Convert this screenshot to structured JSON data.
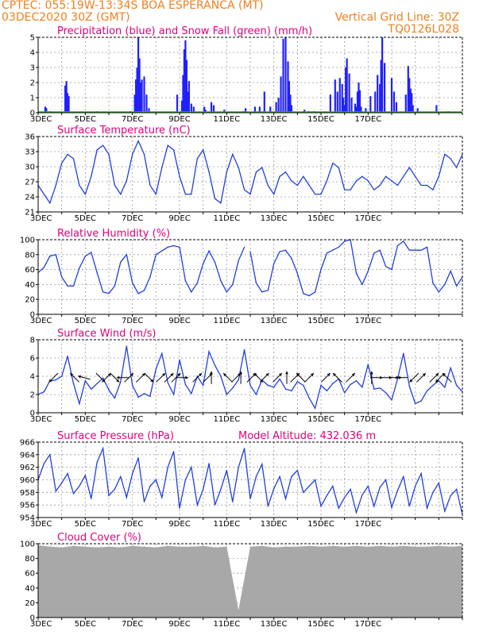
{
  "header": {
    "line1": "CPTEC:   055:19W-13:34S  BOA ESPERANCA (MT)",
    "line2": "03DEC2020 30Z (GMT)",
    "grid_note": "Vertical Grid Line: 30Z",
    "run_code": "TQ0126L028"
  },
  "colors": {
    "precip": "#2020ff",
    "snow": "#20c020",
    "line": "#2040e0",
    "cloud": "#a8a8a8",
    "title": "#e0007a",
    "header": "#f08020"
  },
  "x_labels": [
    "3DEC",
    "5DEC",
    "7DEC",
    "9DEC",
    "11DEC",
    "13DEC",
    "15DEC",
    "17DEC"
  ],
  "chart_data": [
    {
      "id": "precip",
      "type": "bar",
      "title": "Precipitation (blue) and Snow Fall (green) (mm/h)",
      "ylim": [
        0,
        5
      ],
      "yticks": [
        "0",
        "1",
        "2",
        "3",
        "4",
        "5"
      ],
      "x_days": [
        0.3,
        0.35,
        0.5,
        1.15,
        1.2,
        1.25,
        1.3,
        2.5,
        3.9,
        4.1,
        4.15,
        4.2,
        4.25,
        4.3,
        4.35,
        4.4,
        4.5,
        4.6,
        4.7,
        5.9,
        6.1,
        6.15,
        6.2,
        6.25,
        6.3,
        6.35,
        6.4,
        6.5,
        6.6,
        7.05,
        7.1,
        7.35,
        7.45,
        7.9,
        8.7,
        8.8,
        9.2,
        9.4,
        9.6,
        9.85,
        10.1,
        10.2,
        10.3,
        10.4,
        10.5,
        10.6,
        10.65,
        10.7,
        10.75,
        11.3,
        11.5,
        11.7,
        12.4,
        12.6,
        12.7,
        12.8,
        12.9,
        12.95,
        13.0,
        13.05,
        13.1,
        13.2,
        13.3,
        13.45,
        13.5,
        13.55,
        13.6,
        13.65,
        13.7,
        13.9,
        14.1,
        14.3,
        14.4,
        14.5,
        14.55,
        14.6,
        14.7,
        15.0,
        15.1,
        15.2,
        15.6,
        15.7,
        15.75,
        15.8,
        15.85,
        15.9,
        16.1,
        16.9,
        17.4
      ],
      "values": [
        0.4,
        0.3,
        0.1,
        1.8,
        2.1,
        1.3,
        1.1,
        0.1,
        0.1,
        1.2,
        2.2,
        3.0,
        5.0,
        3.6,
        2.0,
        2.2,
        2.4,
        1.2,
        0.3,
        1.2,
        0.8,
        2.5,
        4.2,
        4.8,
        3.5,
        1.4,
        2.1,
        0.6,
        0.4,
        0.4,
        0.2,
        0.7,
        0.5,
        0.2,
        0.1,
        0.3,
        0.4,
        0.4,
        1.4,
        0.4,
        0.7,
        1.0,
        2.4,
        4.9,
        5.0,
        3.4,
        2.1,
        1.2,
        0.5,
        0.2,
        0.1,
        0.1,
        1.2,
        2.2,
        1.4,
        2.3,
        1.9,
        1.0,
        0.5,
        3.0,
        3.6,
        2.6,
        1.0,
        0.6,
        0.4,
        1.4,
        2.0,
        1.5,
        0.4,
        0.3,
        1.1,
        1.4,
        2.5,
        1.9,
        3.5,
        5.0,
        3.3,
        2.3,
        1.4,
        0.7,
        1.2,
        3.1,
        2.3,
        1.6,
        1.3,
        0.5,
        0.3,
        0.5,
        0.1
      ],
      "snow_values": "all 0"
    },
    {
      "id": "temp",
      "type": "line",
      "title": "Surface Temperature (nC)",
      "ylim": [
        20,
        37
      ],
      "yticks": [
        "21",
        "24",
        "27",
        "30",
        "33",
        "36"
      ],
      "x_days": [
        0,
        0.25,
        0.5,
        0.75,
        1.0,
        1.25,
        1.5,
        1.75,
        2.0,
        2.25,
        2.5,
        2.75,
        3.0,
        3.25,
        3.5,
        3.75,
        4.0,
        4.25,
        4.5,
        4.75,
        5.0,
        5.25,
        5.5,
        5.75,
        6.0,
        6.25,
        6.5,
        6.75,
        7.0,
        7.25,
        7.5,
        7.75,
        8.0,
        8.25,
        8.5,
        8.75,
        9.0,
        9.25,
        9.5,
        9.75,
        10.0,
        10.25,
        10.5,
        10.75,
        11.0,
        11.25,
        11.5,
        11.75,
        12.0,
        12.25,
        12.5,
        12.75,
        13.0,
        13.25,
        13.5,
        13.75,
        14.0,
        14.25,
        14.5,
        14.75,
        15.0,
        15.25,
        15.5,
        15.75,
        16.0,
        16.25,
        16.5,
        16.75,
        17.0,
        17.25,
        17.5,
        17.75,
        18.0
      ],
      "values": [
        26,
        24,
        22,
        26,
        31,
        33,
        32,
        26,
        24,
        28,
        34,
        35,
        33,
        26,
        24,
        27,
        33,
        36,
        33,
        26,
        24,
        30,
        35,
        34,
        28,
        24,
        24,
        32,
        34,
        29,
        23,
        22,
        29,
        33,
        30,
        25,
        24,
        29,
        30,
        26,
        24,
        28,
        29,
        27,
        26,
        28,
        26,
        24,
        24,
        27,
        31,
        30,
        25,
        25,
        27,
        28,
        27,
        25,
        26,
        28,
        27,
        26,
        28,
        30,
        28,
        26,
        26,
        25,
        28,
        33,
        32,
        30,
        33
      ],
      "gaps": []
    },
    {
      "id": "rh",
      "type": "line",
      "title": "Relative Humidity (%)",
      "ylim": [
        0,
        100
      ],
      "yticks": [
        "0",
        "20",
        "40",
        "60",
        "80",
        "100"
      ],
      "x_days": [
        0,
        0.25,
        0.5,
        0.75,
        1.0,
        1.25,
        1.5,
        1.75,
        2.0,
        2.25,
        2.5,
        2.75,
        3.0,
        3.25,
        3.5,
        3.75,
        4.0,
        4.25,
        4.5,
        4.75,
        5.0,
        5.25,
        5.5,
        5.75,
        6.0,
        6.25,
        6.5,
        6.75,
        7.0,
        7.25,
        7.5,
        7.75,
        8.0,
        8.25,
        8.5,
        8.75,
        9.0,
        9.25,
        9.5,
        9.75,
        10.0,
        10.25,
        10.5,
        10.75,
        11.0,
        11.25,
        11.5,
        11.75,
        12.0,
        12.25,
        12.5,
        12.75,
        13.0,
        13.25,
        13.5,
        13.75,
        14.0,
        14.25,
        14.5,
        14.75,
        15.0,
        15.25,
        15.5,
        15.75,
        16.0,
        16.25,
        16.5,
        16.75,
        17.0,
        17.25,
        17.5,
        17.75,
        18.0
      ],
      "values": [
        56,
        63,
        78,
        80,
        50,
        38,
        38,
        62,
        78,
        83,
        56,
        30,
        28,
        38,
        70,
        80,
        42,
        28,
        32,
        50,
        80,
        85,
        90,
        92,
        90,
        45,
        30,
        42,
        68,
        85,
        70,
        45,
        30,
        40,
        72,
        90,
        84,
        42,
        30,
        32,
        68,
        84,
        86,
        75,
        55,
        28,
        25,
        30,
        60,
        82,
        86,
        90,
        98,
        100,
        55,
        40,
        58,
        82,
        86,
        64,
        60,
        92,
        98,
        86,
        86,
        86,
        90,
        42,
        30,
        40,
        58,
        38,
        50
      ],
      "gaps": [
        8.9
      ]
    },
    {
      "id": "wind",
      "type": "line",
      "title": "Surface Wind (m/s)",
      "ylim": [
        0,
        8
      ],
      "yticks": [
        "0",
        "2",
        "4",
        "6",
        "8"
      ],
      "x_days": [
        0,
        0.25,
        0.5,
        0.75,
        1.0,
        1.25,
        1.5,
        1.75,
        2.0,
        2.25,
        2.5,
        2.75,
        3.0,
        3.25,
        3.5,
        3.75,
        4.0,
        4.25,
        4.5,
        4.75,
        5.0,
        5.25,
        5.5,
        5.75,
        6.0,
        6.25,
        6.5,
        6.75,
        7.0,
        7.25,
        7.5,
        7.75,
        8.0,
        8.25,
        8.5,
        8.75,
        9.0,
        9.25,
        9.5,
        9.75,
        10.0,
        10.25,
        10.5,
        10.75,
        11.0,
        11.25,
        11.5,
        11.75,
        12.0,
        12.25,
        12.5,
        12.75,
        13.0,
        13.25,
        13.5,
        13.75,
        14.0,
        14.25,
        14.5,
        14.75,
        15.0,
        15.25,
        15.5,
        15.75,
        16.0,
        16.25,
        16.5,
        16.75,
        17.0,
        17.25,
        17.5,
        17.75,
        18.0
      ],
      "values": [
        2,
        2.3,
        3.5,
        3.6,
        4,
        6.2,
        3.2,
        1,
        3.5,
        2.6,
        3.2,
        3.8,
        2.5,
        1.6,
        3.4,
        7.3,
        3,
        1.7,
        2.1,
        1.8,
        4.8,
        6.5,
        3.3,
        2,
        5.8,
        3.1,
        2.1,
        4,
        3,
        6.7,
        5.2,
        4,
        2,
        2.7,
        3.6,
        6.9,
        3,
        2,
        3.6,
        3,
        2.8,
        3.7,
        2.6,
        2.4,
        3.4,
        3,
        1.6,
        0.5,
        3,
        2.4,
        3.2,
        3.7,
        2.2,
        3.1,
        3.5,
        2.8,
        5.3,
        2.6,
        2.7,
        2.2,
        1.4,
        3.7,
        6.5,
        2.9,
        1,
        1.3,
        2.4,
        3,
        3.5,
        2.8,
        4.9,
        3,
        2.3
      ],
      "arrows": [
        [
          0.65,
          225
        ],
        [
          1.55,
          135
        ],
        [
          1.95,
          165
        ],
        [
          2.65,
          315
        ],
        [
          2.9,
          45
        ],
        [
          3.25,
          315
        ],
        [
          3.6,
          180
        ],
        [
          3.85,
          45
        ],
        [
          4.35,
          45
        ],
        [
          4.7,
          315
        ],
        [
          5.2,
          45
        ],
        [
          5.55,
          45
        ],
        [
          5.85,
          45
        ],
        [
          6.1,
          0
        ],
        [
          6.75,
          45
        ],
        [
          7.2,
          45
        ],
        [
          7.35,
          90
        ],
        [
          8.05,
          135
        ],
        [
          8.4,
          45
        ],
        [
          8.6,
          90
        ],
        [
          9.05,
          45
        ],
        [
          9.35,
          135
        ],
        [
          9.6,
          45
        ],
        [
          10.15,
          45
        ],
        [
          10.55,
          90
        ],
        [
          10.9,
          45
        ],
        [
          11.15,
          135
        ],
        [
          11.5,
          45
        ],
        [
          12.2,
          45
        ],
        [
          12.7,
          135
        ],
        [
          13.25,
          45
        ],
        [
          14.15,
          90
        ],
        [
          14.35,
          0
        ],
        [
          14.75,
          0
        ],
        [
          15.15,
          0
        ],
        [
          15.4,
          180
        ],
        [
          15.95,
          225
        ],
        [
          16.25,
          45
        ],
        [
          16.8,
          45
        ],
        [
          17.05,
          225
        ],
        [
          17.35,
          135
        ]
      ]
    },
    {
      "id": "pressure",
      "type": "line",
      "title": "Surface Pressure (hPa)",
      "extra_label": "Model Altitude: 432.036  m",
      "ylim": [
        954,
        966
      ],
      "yticks": [
        "954",
        "956",
        "958",
        "960",
        "962",
        "964",
        "966"
      ],
      "x_days": [
        0,
        0.25,
        0.5,
        0.75,
        1.0,
        1.25,
        1.5,
        1.75,
        2.0,
        2.25,
        2.5,
        2.75,
        3.0,
        3.25,
        3.5,
        3.75,
        4.0,
        4.25,
        4.5,
        4.75,
        5.0,
        5.25,
        5.5,
        5.75,
        6.0,
        6.25,
        6.5,
        6.75,
        7.0,
        7.25,
        7.5,
        7.75,
        8.0,
        8.25,
        8.5,
        8.75,
        9.0,
        9.25,
        9.5,
        9.75,
        10.0,
        10.25,
        10.5,
        10.75,
        11.0,
        11.25,
        11.5,
        11.75,
        12.0,
        12.25,
        12.5,
        12.75,
        13.0,
        13.25,
        13.5,
        13.75,
        14.0,
        14.25,
        14.5,
        14.75,
        15.0,
        15.25,
        15.5,
        15.75,
        16.0,
        16.25,
        16.5,
        16.75,
        17.0,
        17.25,
        17.5,
        17.75,
        18.0
      ],
      "values": [
        960,
        962.6,
        964,
        958.2,
        959.5,
        961,
        957.8,
        959,
        960.7,
        957,
        962.8,
        965,
        957.5,
        958.5,
        960.5,
        957.2,
        961,
        963.5,
        956.5,
        959,
        960,
        957.2,
        962,
        964.5,
        955.5,
        960,
        962,
        956,
        958.5,
        962.6,
        956,
        958.5,
        961.5,
        956.5,
        962,
        965,
        957,
        960.5,
        962.5,
        955.8,
        958.6,
        960.5,
        957,
        960.5,
        961.5,
        958,
        959,
        960,
        955.8,
        957.5,
        959,
        955.5,
        957.2,
        958.5,
        954.8,
        957.6,
        959,
        955.8,
        958.8,
        960,
        955.6,
        958.3,
        960.5,
        955.8,
        959,
        961,
        955.5,
        958,
        959.5,
        955,
        957.5,
        958.5,
        954.5
      ],
      "gaps": []
    },
    {
      "id": "cloud",
      "type": "area",
      "title": "Cloud Cover (%)",
      "ylim": [
        0,
        100
      ],
      "yticks": [
        "0",
        "20",
        "40",
        "60",
        "80",
        "100"
      ],
      "x_days": [
        0,
        0.5,
        1.0,
        1.5,
        2.0,
        2.5,
        3.0,
        3.5,
        4.0,
        4.5,
        5.0,
        5.5,
        6.0,
        6.5,
        7.0,
        7.5,
        8.0,
        8.5,
        9.0,
        9.5,
        10.0,
        10.5,
        11.0,
        11.5,
        12.0,
        12.5,
        13.0,
        13.5,
        14.0,
        14.5,
        15.0,
        15.5,
        16.0,
        16.5,
        17.0,
        17.5,
        18.0
      ],
      "values": [
        98,
        96,
        95,
        97,
        96,
        95,
        96,
        95,
        97,
        96,
        95,
        97,
        96,
        96,
        97,
        95,
        96,
        10,
        96,
        97,
        95,
        96,
        96,
        97,
        96,
        97,
        96,
        97,
        96,
        97,
        96,
        97,
        96,
        96,
        97,
        96,
        97
      ]
    }
  ]
}
